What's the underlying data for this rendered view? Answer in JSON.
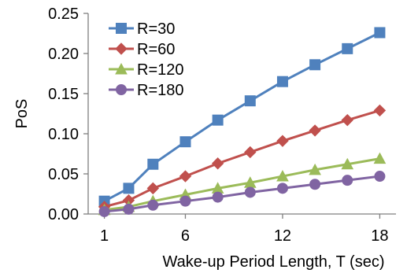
{
  "chart_data": {
    "type": "line",
    "xlabel": "Wake-up Period Length, T (sec)",
    "ylabel": "PoS",
    "xlim": [
      0,
      19
    ],
    "ylim": [
      0,
      0.25
    ],
    "xticks": [
      {
        "value": 1,
        "label": "1"
      },
      {
        "value": 6,
        "label": "6"
      },
      {
        "value": 12,
        "label": "12"
      },
      {
        "value": 18,
        "label": "18"
      }
    ],
    "yticks": [
      {
        "value": 0,
        "label": "0.00"
      },
      {
        "value": 0.05,
        "label": "0.05"
      },
      {
        "value": 0.1,
        "label": "0.10"
      },
      {
        "value": 0.15,
        "label": "0.15"
      },
      {
        "value": 0.2,
        "label": "0.20"
      },
      {
        "value": 0.25,
        "label": "0.25"
      }
    ],
    "x": [
      1,
      2.5,
      4,
      6,
      8,
      10,
      12,
      14,
      16,
      18
    ],
    "grid": false,
    "legend_position": "top-left",
    "series": [
      {
        "name": "R=30",
        "color": "#4f81bd",
        "marker": "square",
        "values": [
          0.016,
          0.032,
          0.062,
          0.09,
          0.117,
          0.141,
          0.165,
          0.186,
          0.206,
          0.226
        ]
      },
      {
        "name": "R=60",
        "color": "#c0504d",
        "marker": "diamond",
        "values": [
          0.009,
          0.017,
          0.032,
          0.047,
          0.063,
          0.077,
          0.091,
          0.104,
          0.117,
          0.129
        ]
      },
      {
        "name": "R=120",
        "color": "#9bbb59",
        "marker": "triangle",
        "values": [
          0.005,
          0.009,
          0.016,
          0.024,
          0.032,
          0.039,
          0.047,
          0.055,
          0.062,
          0.069
        ]
      },
      {
        "name": "R=180",
        "color": "#8064a2",
        "marker": "circle",
        "values": [
          0.003,
          0.006,
          0.011,
          0.016,
          0.021,
          0.027,
          0.032,
          0.037,
          0.042,
          0.047
        ]
      }
    ]
  }
}
